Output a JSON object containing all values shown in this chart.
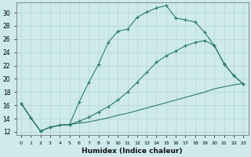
{
  "xlabel": "Humidex (Indice chaleur)",
  "bg_color": "#ceeaec",
  "line_color": "#2d7a6e",
  "grid_color": "#b8d8db",
  "xlim": [
    -0.5,
    23.5
  ],
  "ylim": [
    11.5,
    31.5
  ],
  "xticks": [
    0,
    1,
    2,
    3,
    4,
    5,
    6,
    7,
    8,
    9,
    10,
    11,
    12,
    13,
    14,
    15,
    16,
    17,
    18,
    19,
    20,
    21,
    22,
    23
  ],
  "yticks": [
    12,
    14,
    16,
    18,
    20,
    22,
    24,
    26,
    28,
    30
  ],
  "line1_x": [
    0,
    1,
    2,
    3,
    4,
    5,
    6,
    7,
    8,
    9,
    10,
    11,
    12,
    13,
    14,
    15,
    16,
    17,
    18,
    19,
    20,
    21,
    22,
    23
  ],
  "line1_y": [
    16.3,
    14.1,
    12.1,
    12.7,
    13.0,
    13.1,
    16.5,
    19.5,
    22.2,
    25.5,
    27.2,
    27.5,
    29.3,
    30.1,
    30.7,
    31.1,
    29.2,
    28.9,
    28.6,
    27.0,
    25.0,
    22.3,
    20.5,
    19.2
  ],
  "line2_x": [
    0,
    1,
    2,
    3,
    4,
    5,
    6,
    7,
    8,
    9,
    10,
    11,
    12,
    13,
    14,
    15,
    16,
    17,
    18,
    19,
    20,
    21,
    22,
    23
  ],
  "line2_y": [
    16.3,
    14.1,
    12.1,
    12.7,
    13.0,
    13.1,
    13.6,
    14.2,
    15.0,
    15.8,
    16.8,
    18.0,
    19.5,
    21.0,
    22.5,
    23.5,
    24.2,
    25.0,
    25.5,
    25.8,
    25.0,
    22.2,
    20.5,
    19.2
  ],
  "line3_x": [
    0,
    1,
    2,
    3,
    4,
    5,
    6,
    7,
    8,
    9,
    10,
    11,
    12,
    13,
    14,
    15,
    16,
    17,
    18,
    19,
    20,
    21,
    22,
    23
  ],
  "line3_y": [
    16.3,
    14.1,
    12.1,
    12.7,
    13.0,
    13.1,
    13.3,
    13.5,
    13.8,
    14.1,
    14.5,
    14.8,
    15.2,
    15.6,
    16.0,
    16.4,
    16.8,
    17.2,
    17.6,
    18.0,
    18.5,
    18.8,
    19.1,
    19.3
  ]
}
